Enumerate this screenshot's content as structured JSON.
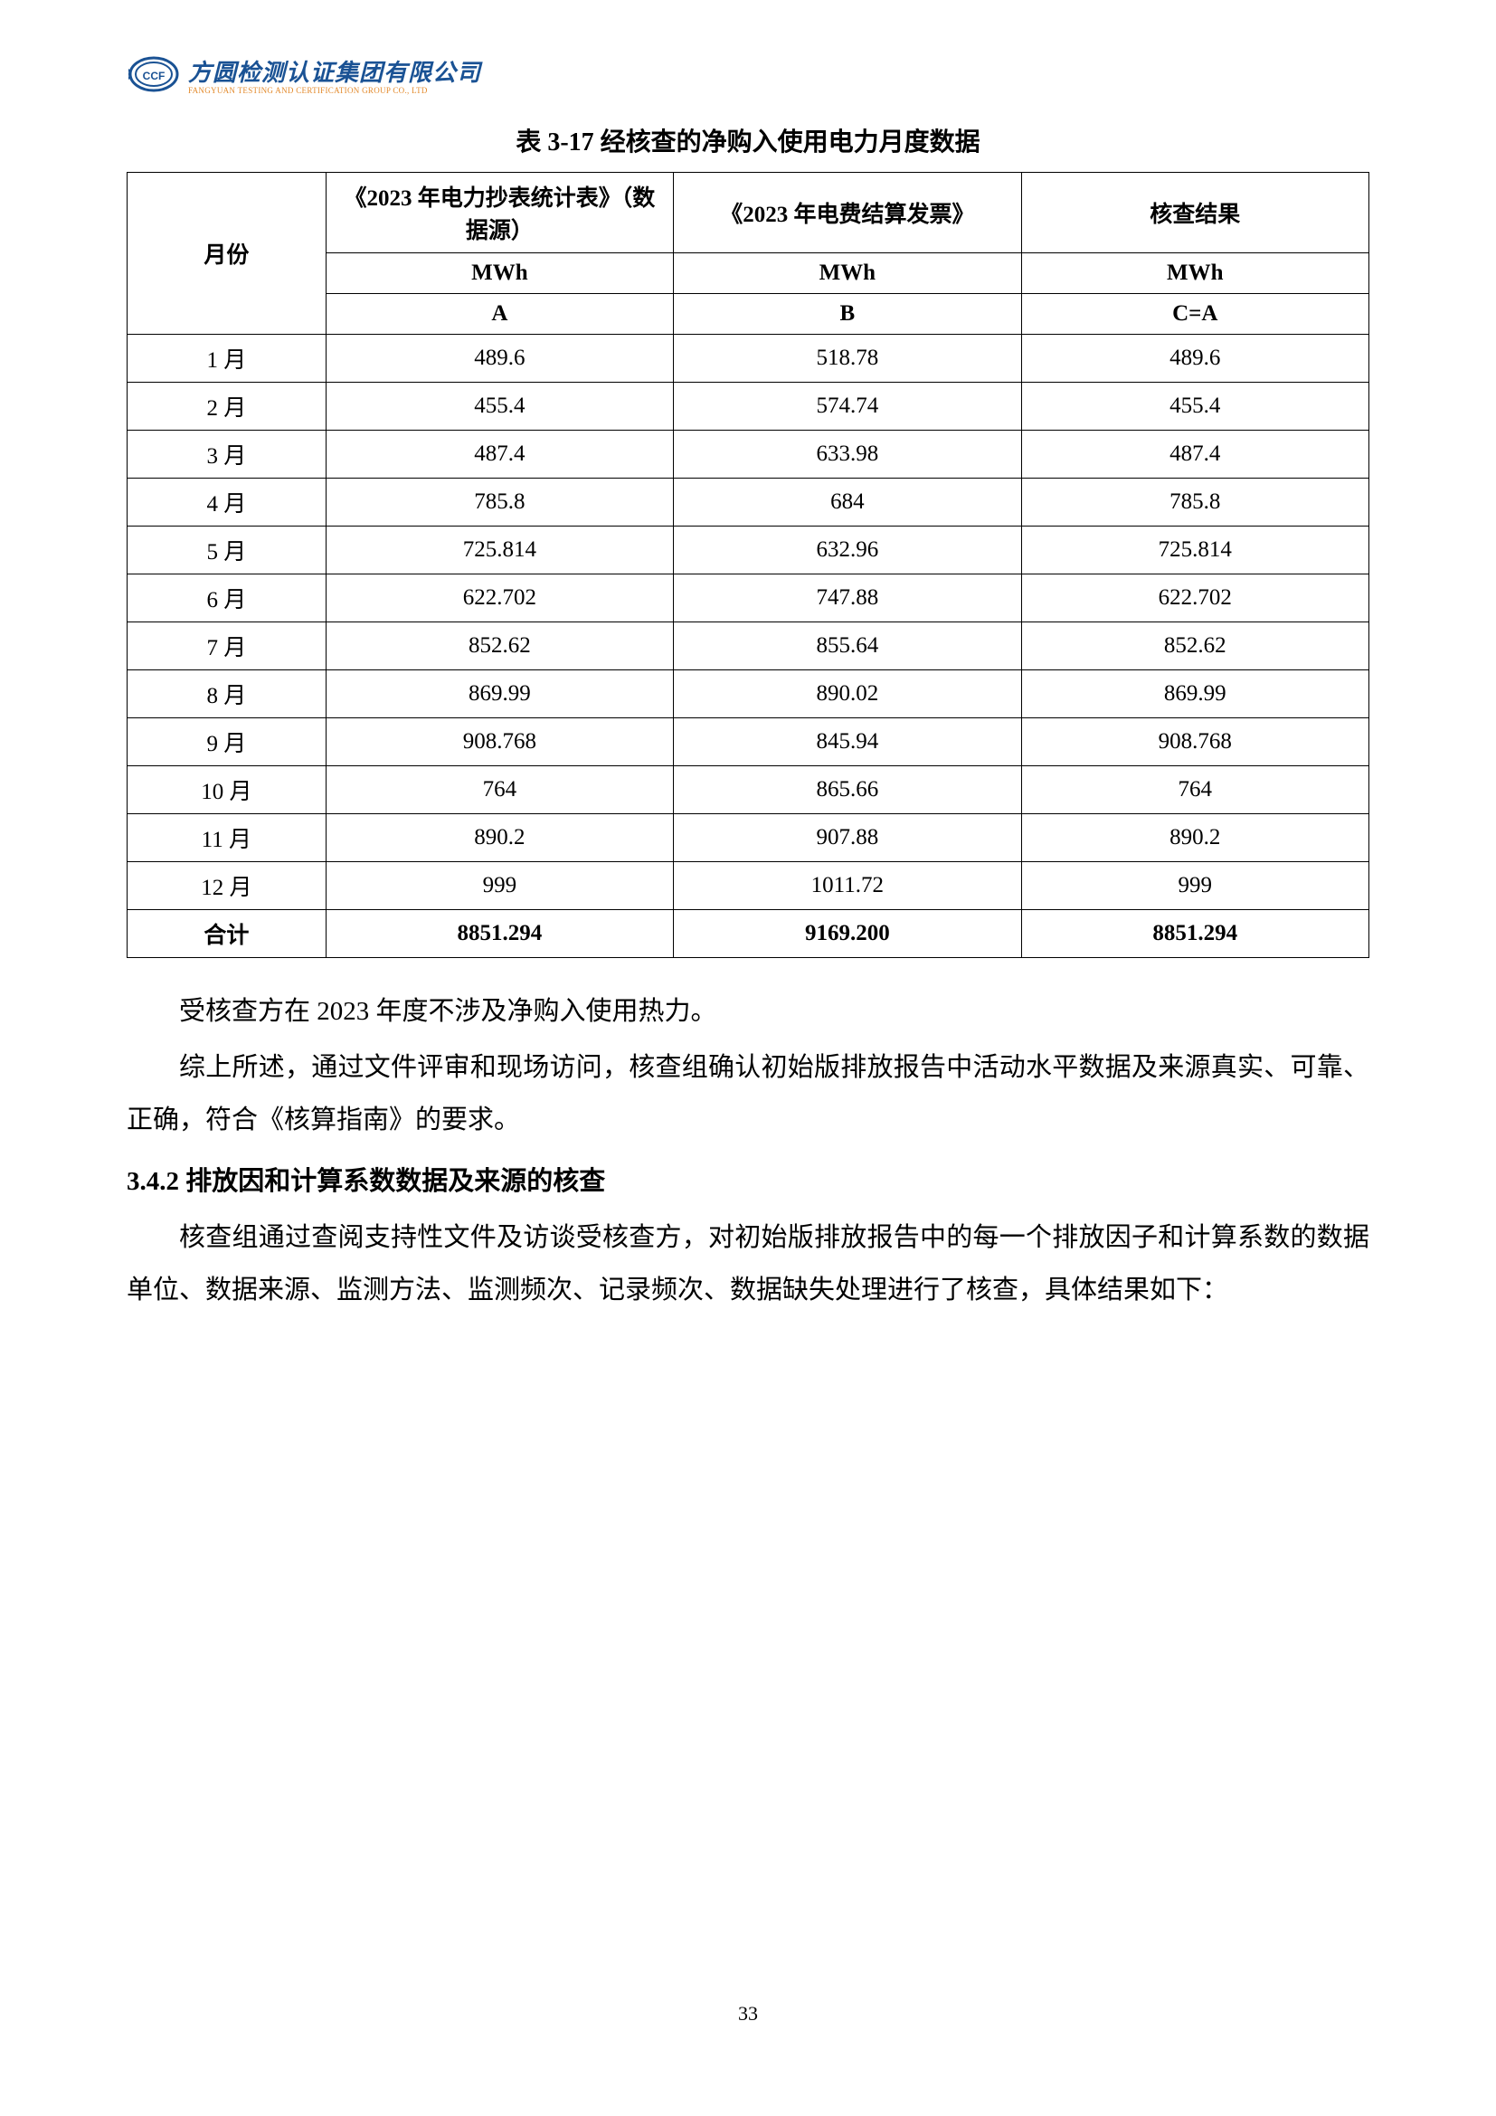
{
  "logo": {
    "company_name": "方圆检测认证集团有限公司",
    "company_name_en": "FANGYUAN TESTING AND CERTIFICATION GROUP CO., LTD",
    "primary_color": "#1a5294",
    "accent_color": "#e38a2c"
  },
  "table": {
    "title": "表 3-17  经核查的净购入使用电力月度数据",
    "headers": {
      "month": "月份",
      "source_a": "《2023 年电力抄表统计表》（数据源）",
      "source_b": "《2023 年电费结算发票》",
      "result": "核查结果",
      "unit": "MWh",
      "code_a": "A",
      "code_b": "B",
      "code_c": "C=A"
    },
    "rows": [
      {
        "month": "1 月",
        "a": "489.6",
        "b": "518.78",
        "c": "489.6"
      },
      {
        "month": "2 月",
        "a": "455.4",
        "b": "574.74",
        "c": "455.4"
      },
      {
        "month": "3 月",
        "a": "487.4",
        "b": "633.98",
        "c": "487.4"
      },
      {
        "month": "4 月",
        "a": "785.8",
        "b": "684",
        "c": "785.8"
      },
      {
        "month": "5 月",
        "a": "725.814",
        "b": "632.96",
        "c": "725.814"
      },
      {
        "month": "6 月",
        "a": "622.702",
        "b": "747.88",
        "c": "622.702"
      },
      {
        "month": "7 月",
        "a": "852.62",
        "b": "855.64",
        "c": "852.62"
      },
      {
        "month": "8 月",
        "a": "869.99",
        "b": "890.02",
        "c": "869.99"
      },
      {
        "month": "9 月",
        "a": "908.768",
        "b": "845.94",
        "c": "908.768"
      },
      {
        "month": "10 月",
        "a": "764",
        "b": "865.66",
        "c": "764"
      },
      {
        "month": "11 月",
        "a": "890.2",
        "b": "907.88",
        "c": "890.2"
      },
      {
        "month": "12 月",
        "a": "999",
        "b": "1011.72",
        "c": "999"
      }
    ],
    "total": {
      "label": "合计",
      "a": "8851.294",
      "b": "9169.200",
      "c": "8851.294"
    }
  },
  "paragraphs": {
    "p1": "受核查方在 2023 年度不涉及净购入使用热力。",
    "p2": "综上所述，通过文件评审和现场访问，核查组确认初始版排放报告中活动水平数据及来源真实、可靠、正确，符合《核算指南》的要求。",
    "heading": "3.4.2 排放因和计算系数数据及来源的核查",
    "p3": "核查组通过查阅支持性文件及访谈受核查方，对初始版排放报告中的每一个排放因子和计算系数的数据单位、数据来源、监测方法、监测频次、记录频次、数据缺失处理进行了核查，具体结果如下："
  },
  "page_number": "33"
}
